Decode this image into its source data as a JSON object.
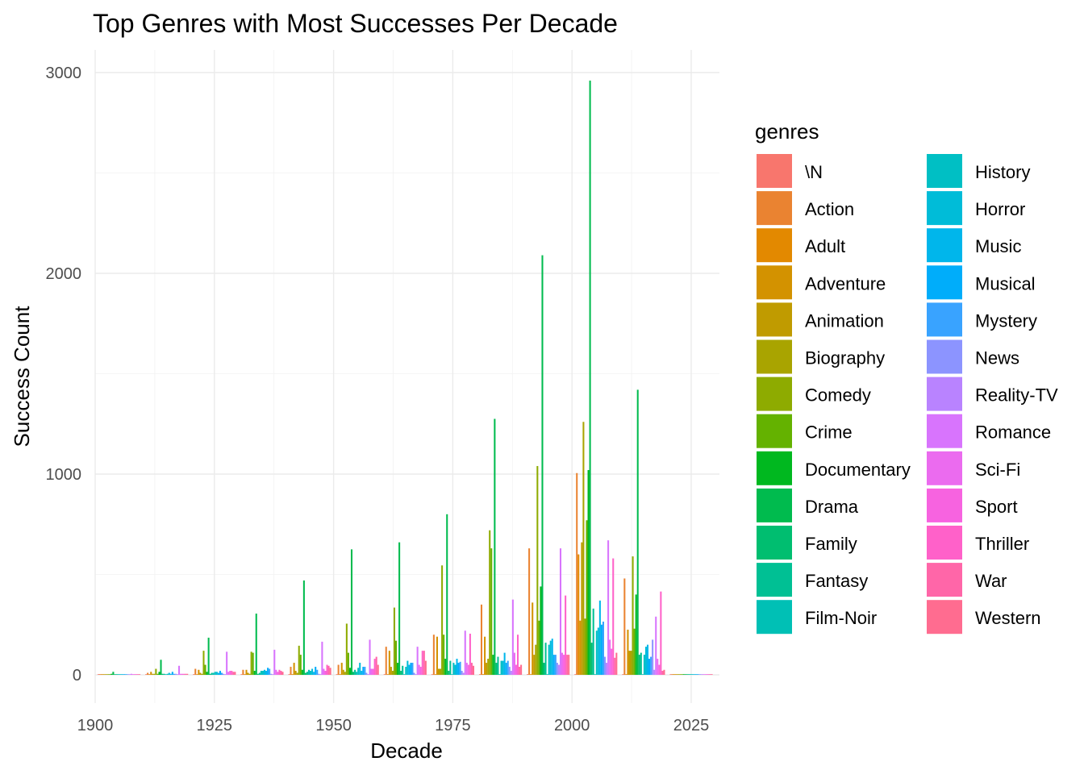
{
  "chart_data": {
    "type": "bar",
    "title": "Top Genres with Most Successes Per Decade",
    "xlabel": "Decade",
    "ylabel": "Success Count",
    "legend_title": "genres",
    "legend_position": "right",
    "grid": true,
    "xlim": [
      1900,
      2025
    ],
    "ylim": [
      0,
      3000
    ],
    "xticks": [
      1900,
      1925,
      1950,
      1975,
      2000,
      2025
    ],
    "yticks": [
      0,
      1000,
      2000,
      3000
    ],
    "categories": [
      1900,
      1910,
      1920,
      1930,
      1940,
      1950,
      1960,
      1970,
      1980,
      1990,
      2000,
      2010,
      2020
    ],
    "series": [
      {
        "name": "\\N",
        "color": "#F8766D",
        "values": [
          0,
          0,
          0,
          0,
          0,
          0,
          0,
          0,
          0,
          0,
          0,
          0,
          0
        ]
      },
      {
        "name": "Action",
        "color": "#EA8331",
        "values": [
          0,
          10,
          30,
          25,
          40,
          50,
          140,
          200,
          350,
          630,
          1005,
          480,
          0
        ]
      },
      {
        "name": "Adult",
        "color": "#E38900",
        "values": [
          0,
          0,
          0,
          0,
          0,
          0,
          0,
          0,
          0,
          0,
          600,
          0,
          0
        ]
      },
      {
        "name": "Adventure",
        "color": "#D39200",
        "values": [
          0,
          15,
          25,
          25,
          60,
          60,
          120,
          190,
          190,
          360,
          270,
          225,
          0
        ]
      },
      {
        "name": "Animation",
        "color": "#C09B00",
        "values": [
          0,
          5,
          10,
          10,
          20,
          25,
          40,
          30,
          60,
          100,
          660,
          120,
          0
        ]
      },
      {
        "name": "Biography",
        "color": "#A9A400",
        "values": [
          0,
          5,
          5,
          5,
          10,
          15,
          20,
          30,
          80,
          150,
          1260,
          120,
          0
        ]
      },
      {
        "name": "Comedy",
        "color": "#8EAB00",
        "values": [
          0,
          30,
          120,
          115,
          145,
          255,
          335,
          545,
          720,
          1040,
          280,
          590,
          0
        ]
      },
      {
        "name": "Crime",
        "color": "#64B200",
        "values": [
          0,
          5,
          50,
          110,
          100,
          110,
          170,
          200,
          630,
          270,
          770,
          230,
          0
        ]
      },
      {
        "name": "Documentary",
        "color": "#00B81F",
        "values": [
          5,
          15,
          15,
          20,
          25,
          35,
          60,
          80,
          100,
          440,
          1020,
          400,
          0
        ]
      },
      {
        "name": "Drama",
        "color": "#00BB4E",
        "values": [
          15,
          75,
          185,
          305,
          470,
          625,
          660,
          800,
          1275,
          2090,
          2960,
          1420,
          0
        ]
      },
      {
        "name": "Family",
        "color": "#00BE70",
        "values": [
          0,
          5,
          5,
          5,
          10,
          15,
          20,
          20,
          60,
          60,
          160,
          100,
          0
        ]
      },
      {
        "name": "Fantasy",
        "color": "#00C094",
        "values": [
          0,
          5,
          10,
          10,
          15,
          25,
          45,
          70,
          90,
          160,
          330,
          110,
          0
        ]
      },
      {
        "name": "Film-Noir",
        "color": "#00C0B5",
        "values": [
          0,
          0,
          10,
          20,
          25,
          15,
          0,
          0,
          0,
          0,
          0,
          0,
          0
        ]
      },
      {
        "name": "History",
        "color": "#00BFC4",
        "values": [
          0,
          5,
          15,
          20,
          20,
          35,
          40,
          60,
          70,
          150,
          220,
          100,
          0
        ]
      },
      {
        "name": "Horror",
        "color": "#00BCD8",
        "values": [
          0,
          10,
          15,
          25,
          30,
          60,
          70,
          50,
          70,
          170,
          235,
          140,
          0
        ]
      },
      {
        "name": "Music",
        "color": "#00B6EB",
        "values": [
          0,
          5,
          10,
          20,
          15,
          20,
          50,
          80,
          110,
          180,
          370,
          150,
          0
        ]
      },
      {
        "name": "Musical",
        "color": "#00ADFA",
        "values": [
          0,
          15,
          20,
          35,
          40,
          40,
          60,
          60,
          60,
          100,
          250,
          80,
          0
        ]
      },
      {
        "name": "Mystery",
        "color": "#39A3FF",
        "values": [
          0,
          5,
          10,
          30,
          25,
          40,
          60,
          65,
          70,
          100,
          265,
          90,
          0
        ]
      },
      {
        "name": "News",
        "color": "#8C94FF",
        "values": [
          0,
          5,
          5,
          5,
          5,
          10,
          10,
          20,
          40,
          60,
          90,
          175,
          0
        ]
      },
      {
        "name": "Reality-TV",
        "color": "#B983FF",
        "values": [
          0,
          0,
          0,
          0,
          0,
          0,
          0,
          10,
          20,
          50,
          60,
          25,
          0
        ]
      },
      {
        "name": "Romance",
        "color": "#D874FD",
        "values": [
          5,
          45,
          115,
          125,
          165,
          175,
          140,
          220,
          375,
          630,
          670,
          290,
          0
        ]
      },
      {
        "name": "Sci-Fi",
        "color": "#EB6BEF",
        "values": [
          0,
          5,
          15,
          25,
          30,
          30,
          50,
          60,
          110,
          110,
          175,
          80,
          0
        ]
      },
      {
        "name": "Sport",
        "color": "#F763E0",
        "values": [
          0,
          5,
          20,
          15,
          20,
          30,
          40,
          50,
          50,
          100,
          130,
          50,
          0
        ]
      },
      {
        "name": "Thriller",
        "color": "#FF61C9",
        "values": [
          0,
          5,
          20,
          25,
          50,
          80,
          120,
          205,
          200,
          395,
          580,
          415,
          0
        ]
      },
      {
        "name": "War",
        "color": "#FF66A8",
        "values": [
          0,
          5,
          15,
          20,
          45,
          90,
          120,
          60,
          40,
          100,
          85,
          20,
          0
        ]
      },
      {
        "name": "Western",
        "color": "#FF6C90",
        "values": [
          0,
          5,
          15,
          15,
          35,
          50,
          70,
          45,
          50,
          100,
          110,
          25,
          0
        ]
      }
    ]
  }
}
